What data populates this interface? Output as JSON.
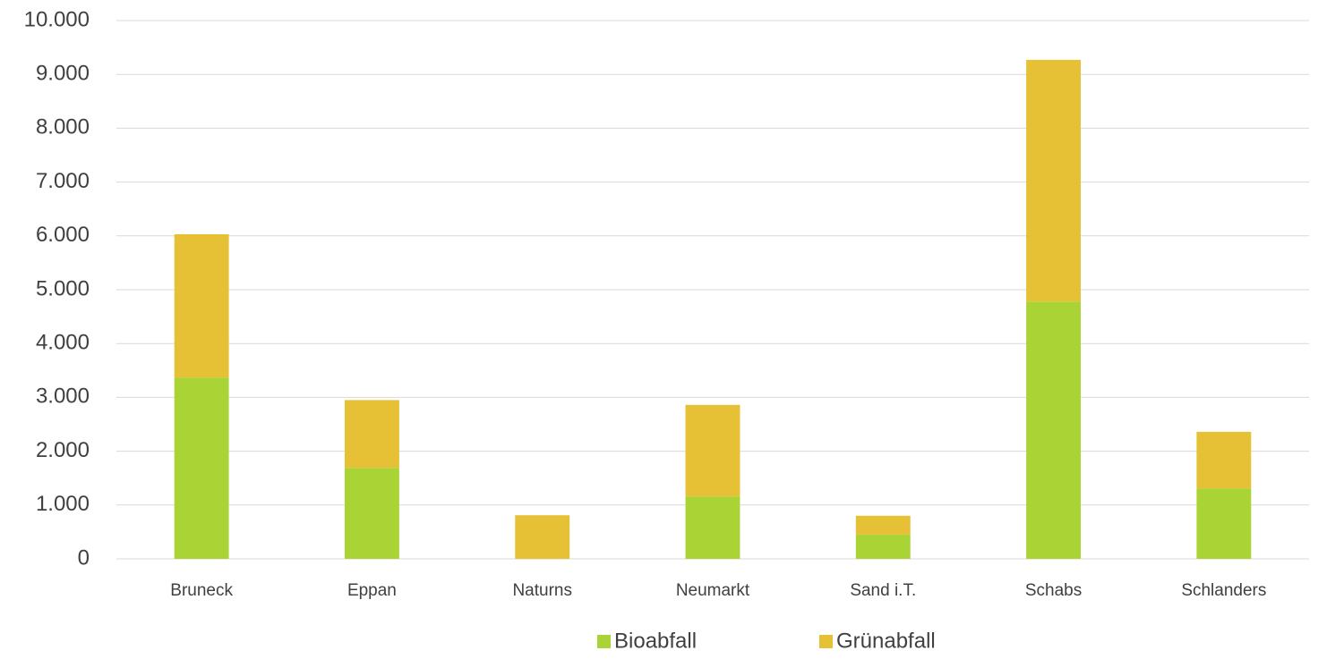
{
  "chart_data": {
    "type": "stacked_bar",
    "categories": [
      "Bruneck",
      "Eppan",
      "Naturns",
      "Neumarkt",
      "Sand i.T.",
      "Schabs",
      "Schlanders"
    ],
    "series": [
      {
        "name": "Bioabfall",
        "color": "#aad436",
        "values": [
          3370,
          1690,
          0,
          1160,
          450,
          4780,
          1310
        ]
      },
      {
        "name": "Grünabfall",
        "color": "#e6c035",
        "values": [
          2660,
          1260,
          810,
          1700,
          350,
          4490,
          1050
        ]
      }
    ],
    "ylim": [
      0,
      10000
    ],
    "yticks": [
      0,
      {
        "value": 1000,
        "label": "1.000"
      },
      {
        "value": 2000,
        "label": "2.000"
      },
      {
        "value": 3000,
        "label": "3.000"
      },
      {
        "value": 4000,
        "label": "4.000"
      },
      {
        "value": 5000,
        "label": "5.000"
      },
      {
        "value": 6000,
        "label": "6.000"
      },
      {
        "value": 7000,
        "label": "7.000"
      },
      {
        "value": 8000,
        "label": "8.000"
      },
      {
        "value": 9000,
        "label": "9.000"
      },
      {
        "value": 10000,
        "label": "10.000"
      }
    ],
    "grid": true,
    "legend": "bottom"
  }
}
